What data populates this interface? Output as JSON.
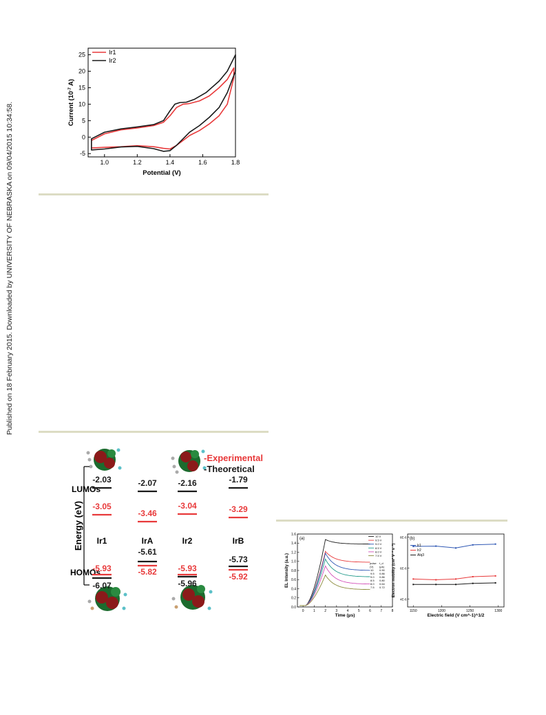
{
  "side_note": "Published on 18 February 2015. Downloaded by UNIVERSITY OF NEBRASKA on 09/04/2015 10:34:58.",
  "colors": {
    "red": "#e8393a",
    "black": "#1a1a1a",
    "blue": "#2d56b3",
    "rule": "#dcdcc4"
  },
  "cv_chart": {
    "chart_data": {
      "type": "line",
      "xlabel": "Potential (V)",
      "ylabel": "Current (10^-7 A)",
      "xlim": [
        0.9,
        1.8
      ],
      "ylim": [
        -6,
        27
      ],
      "xticks": [
        "1.0",
        "1.2",
        "1.4",
        "1.6",
        "1.8"
      ],
      "yticks": [
        "-5",
        "0",
        "5",
        "10",
        "15",
        "20",
        "25"
      ],
      "legend_position": "top-left",
      "series": [
        {
          "name": "Ir1",
          "color": "#e8393a",
          "x": [
            0.92,
            1.0,
            1.1,
            1.2,
            1.3,
            1.36,
            1.4,
            1.44,
            1.48,
            1.52,
            1.58,
            1.64,
            1.7,
            1.75,
            1.79,
            1.79,
            1.75,
            1.7,
            1.64,
            1.58,
            1.52,
            1.48,
            1.44,
            1.4,
            1.36,
            1.3,
            1.2,
            1.1,
            1.0,
            0.92
          ],
          "y": [
            -1,
            1,
            2.2,
            2.8,
            3.5,
            4.5,
            6.5,
            9,
            10,
            10.2,
            11,
            12.5,
            15,
            17.5,
            21,
            18,
            10,
            6.5,
            4,
            2,
            0.5,
            -1,
            -2.5,
            -3.6,
            -3.4,
            -2.9,
            -2.6,
            -2.9,
            -3.1,
            -3.3
          ]
        },
        {
          "name": "Ir2",
          "color": "#1a1a1a",
          "x": [
            0.92,
            1.0,
            1.1,
            1.2,
            1.3,
            1.36,
            1.4,
            1.43,
            1.46,
            1.5,
            1.55,
            1.62,
            1.7,
            1.75,
            1.8,
            1.8,
            1.75,
            1.7,
            1.64,
            1.58,
            1.52,
            1.48,
            1.44,
            1.4,
            1.36,
            1.3,
            1.2,
            1.1,
            1.0,
            0.92
          ],
          "y": [
            -0.5,
            1.5,
            2.5,
            3.1,
            3.8,
            5,
            8,
            10,
            10.5,
            10.6,
            11.5,
            13.5,
            17,
            20,
            25,
            20,
            13.5,
            9,
            6,
            3.5,
            1.5,
            -0.5,
            -2.5,
            -4.1,
            -4.3,
            -3.5,
            -2.8,
            -3.0,
            -3.6,
            -3.9
          ]
        }
      ]
    }
  },
  "energy_diagram": {
    "legend": {
      "experimental": "-Experimental",
      "theoretical": "-Theoretical"
    },
    "ylabel": "Energy (eV)",
    "lumo_label": "LUMOs",
    "homo_label": "HOMOs",
    "chart_data": {
      "type": "table",
      "compounds": [
        "Ir1",
        "IrA",
        "Ir2",
        "IrB"
      ],
      "lumo_theoretical": [
        "-2.03",
        "-2.07",
        "-2.16",
        "-1.79"
      ],
      "lumo_experimental": [
        "-3.05",
        "-3.46",
        "-3.04",
        "-3.29"
      ],
      "homo_experimental": [
        "-5.93",
        "-5.82",
        "-5.93",
        "-5.92"
      ],
      "homo_theoretical": [
        "-6.07",
        "-5.61",
        "-5.96",
        "-5.73"
      ]
    }
  },
  "el_chart": {
    "panel_label": "(a)",
    "xlabel": "Time (μs)",
    "ylabel": "EL Intensity (a.u.)",
    "xticks": [
      "0",
      "1",
      "2",
      "3",
      "4",
      "5",
      "6",
      "7",
      "8"
    ],
    "yticks": [
      "0.0",
      "0.2",
      "0.4",
      "0.6",
      "0.8",
      "1.0",
      "1.2",
      "1.4",
      "1.6"
    ],
    "legend": [
      "10 V",
      "9.5 V",
      "9.0 V",
      "8.5 V",
      "8.0 V",
      "7.5 V"
    ],
    "table_header": [
      "pulse",
      "t_d"
    ],
    "table_units": [
      "(V)",
      "(μs)"
    ],
    "table_rows": [
      [
        "10",
        "0.90"
      ],
      [
        "9.5",
        "0.86"
      ],
      [
        "9.0",
        "0.86"
      ],
      [
        "8.5",
        "0.80"
      ],
      [
        "8.0",
        "0.64"
      ],
      [
        "7.5",
        "0.72"
      ]
    ],
    "chart_data": {
      "type": "line",
      "xlim": [
        -0.5,
        8
      ],
      "ylim": [
        0,
        1.6
      ],
      "series": [
        {
          "name": "10 V",
          "color": "#1a1a1a",
          "plateau": 1.38,
          "peak": 1.48
        },
        {
          "name": "9.5 V",
          "color": "#e8393a",
          "plateau": 0.98,
          "peak": 1.22
        },
        {
          "name": "9.0 V",
          "color": "#2d56b3",
          "plateau": 0.8,
          "peak": 1.18
        },
        {
          "name": "8.5 V",
          "color": "#1f9a8a",
          "plateau": 0.66,
          "peak": 1.05
        },
        {
          "name": "8.0 V",
          "color": "#d24fb8",
          "plateau": 0.5,
          "peak": 0.9
        },
        {
          "name": "7.5 V",
          "color": "#8a8a3a",
          "plateau": 0.38,
          "peak": 0.7
        }
      ]
    }
  },
  "mobility_chart": {
    "panel_label": "(b)",
    "xlabel": "Electric field (V cm^-1)^1/2",
    "ylabel": "Electron mobility (cm² V⁻¹ s⁻¹)",
    "xticks": [
      "1150",
      "1200",
      "1250",
      "1300"
    ],
    "yticks": [
      "4E-6",
      "6E-6",
      "8E-6"
    ],
    "chart_data": {
      "type": "line",
      "xlim": [
        1140,
        1310
      ],
      "ylim": [
        3.5e-06,
        8.2e-06
      ],
      "series": [
        {
          "name": "Ir1",
          "color": "#2d56b3",
          "x": [
            1150,
            1190,
            1225,
            1255,
            1295
          ],
          "y": [
            7.4e-06,
            7.42e-06,
            7.3e-06,
            7.5e-06,
            7.55e-06
          ]
        },
        {
          "name": "Ir2",
          "color": "#e8393a",
          "x": [
            1150,
            1190,
            1225,
            1255,
            1295
          ],
          "y": [
            5.3e-06,
            5.25e-06,
            5.3e-06,
            5.45e-06,
            5.5e-06
          ]
        },
        {
          "name": "Alq3",
          "color": "#1a1a1a",
          "x": [
            1150,
            1190,
            1225,
            1255,
            1295
          ],
          "y": [
            4.95e-06,
            4.95e-06,
            4.95e-06,
            5.02e-06,
            5.05e-06
          ]
        }
      ]
    }
  }
}
